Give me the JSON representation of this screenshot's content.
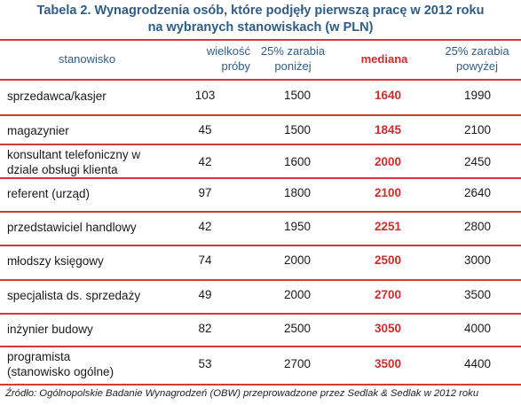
{
  "title_line1": "Tabela 2. Wynagrodzenia osób, które podjęły pierwszą pracę w 2012 roku",
  "title_line2": "na wybranych stanowiskach (w PLN)",
  "headers": {
    "position": "stanowisko",
    "sample_size_line1": "wielkość",
    "sample_size_line2": "próby",
    "p25_line1": "25% zarabia",
    "p25_line2": "poniżej",
    "median": "mediana",
    "p75_line1": "25% zarabia",
    "p75_line2": "powyżej"
  },
  "rows": [
    {
      "name_line1": "sprzedawca/kasjer",
      "name_line2": "",
      "size": "103",
      "p25": "1500",
      "median": "1640",
      "p75": "1990"
    },
    {
      "name_line1": "magazynier",
      "name_line2": "",
      "size": "45",
      "p25": "1500",
      "median": "1845",
      "p75": "2100"
    },
    {
      "name_line1": "konsultant telefoniczny w",
      "name_line2": "dziale obsługi klienta",
      "size": "42",
      "p25": "1600",
      "median": "2000",
      "p75": "2450"
    },
    {
      "name_line1": "referent (urząd)",
      "name_line2": "",
      "size": "97",
      "p25": "1800",
      "median": "2100",
      "p75": "2640"
    },
    {
      "name_line1": "przedstawiciel handlowy",
      "name_line2": "",
      "size": "42",
      "p25": "1950",
      "median": "2251",
      "p75": "2800"
    },
    {
      "name_line1": "młodszy księgowy",
      "name_line2": "",
      "size": "74",
      "p25": "2000",
      "median": "2500",
      "p75": "3000"
    },
    {
      "name_line1": "specjalista ds. sprzedaży",
      "name_line2": "",
      "size": "49",
      "p25": "2000",
      "median": "2700",
      "p75": "3500"
    },
    {
      "name_line1": "inżynier budowy",
      "name_line2": "",
      "size": "82",
      "p25": "2500",
      "median": "3050",
      "p75": "4000"
    },
    {
      "name_line1": "programista",
      "name_line2": "(stanowisko ogólne)",
      "size": "53",
      "p25": "2700",
      "median": "3500",
      "p75": "4400"
    }
  ],
  "source": "Źródło: Ogólnopolskie Badanie Wynagrodzeń (OBW) przeprowadzone  przez Sedlak & Sedlak w 2012 roku",
  "colors": {
    "title": "#2e5d87",
    "rule": "#d33a3a",
    "median": "#d12c2c"
  }
}
